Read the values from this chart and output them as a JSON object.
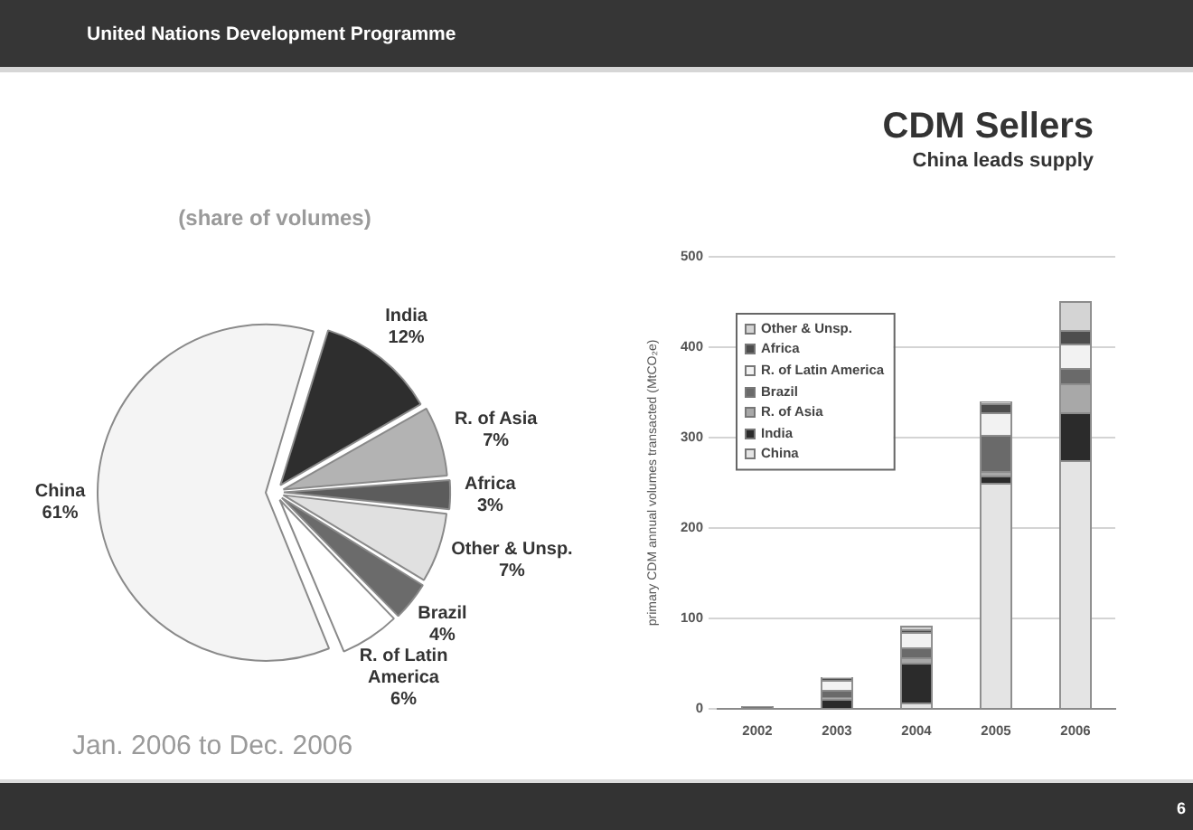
{
  "chart_data": [
    {
      "type": "other",
      "title": "CDM Sellers",
      "subtitle": "China leads supply",
      "annotations": [
        "United Nations Development Programme",
        "6"
      ]
    },
    {
      "type": "pie",
      "title": "(share of volumes)",
      "categories": [
        "India",
        "R. of Asia",
        "Africa",
        "Other & Unsp.",
        "Brazil",
        "R. of Latin America",
        "China"
      ],
      "values": [
        12,
        7,
        3,
        7,
        4,
        6,
        61
      ],
      "value_labels": [
        "12%",
        "7%",
        "3%",
        "7%",
        "4%",
        "6%",
        "61%"
      ],
      "colors": [
        "#2e2e2e",
        "#b3b3b3",
        "#5c5c5c",
        "#e0e0e0",
        "#6b6b6b",
        "#ffffff",
        "#f4f4f4"
      ],
      "annotations": [
        "Jan. 2006 to Dec. 2006"
      ]
    },
    {
      "type": "bar",
      "stacked": true,
      "categories": [
        "2002",
        "2003",
        "2004",
        "2005",
        "2006"
      ],
      "ylabel": "primary CDM annual volumes transacted (MtCO₂e)",
      "ylim": [
        0,
        500
      ],
      "yticks": [
        0,
        100,
        200,
        300,
        400,
        500
      ],
      "grid": "y",
      "legend": "top left",
      "series": [
        {
          "name": "China",
          "color": "#e4e4e4",
          "values": [
            1,
            1,
            7,
            250,
            275
          ]
        },
        {
          "name": "India",
          "color": "#2b2b2b",
          "values": [
            1,
            10,
            44,
            8,
            53
          ]
        },
        {
          "name": "R. of Asia",
          "color": "#a8a8a8",
          "values": [
            0,
            2,
            6,
            5,
            32
          ]
        },
        {
          "name": "Brazil",
          "color": "#6a6a6a",
          "values": [
            1,
            8,
            11,
            40,
            17
          ]
        },
        {
          "name": "R. of Latin America",
          "color": "#f2f2f2",
          "values": [
            0,
            11,
            17,
            25,
            27
          ]
        },
        {
          "name": "Africa",
          "color": "#4d4d4d",
          "values": [
            0,
            2,
            3,
            10,
            15
          ]
        },
        {
          "name": "Other & Unsp.",
          "color": "#d4d4d4",
          "values": [
            0,
            1,
            4,
            2,
            32
          ]
        }
      ]
    }
  ]
}
